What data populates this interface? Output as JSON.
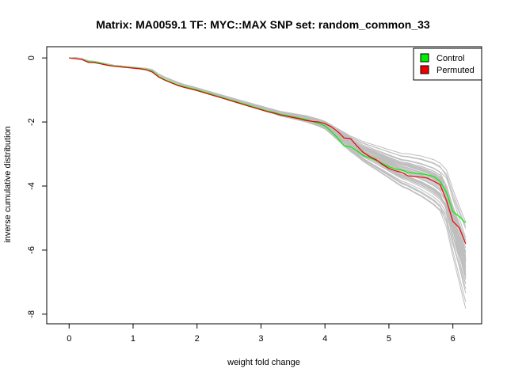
{
  "chart_data": {
    "type": "line",
    "title": "Matrix: MA0059.1 TF: MYC::MAX SNP set: random_common_33",
    "xlabel": "weight fold change",
    "ylabel": "inverse cumulative distribution",
    "xlim": [
      -0.35,
      6.45
    ],
    "ylim": [
      -8.3,
      0.35
    ],
    "x_ticks": [
      0,
      1,
      2,
      3,
      4,
      5,
      6
    ],
    "y_ticks": [
      0,
      -2,
      -4,
      -6,
      -8
    ],
    "x_tick_labels": [
      "0",
      "1",
      "2",
      "3",
      "4",
      "5",
      "6"
    ],
    "y_tick_labels": [
      "0",
      "-2",
      "-4",
      "-6",
      "-8"
    ],
    "legend": {
      "position": "top-right",
      "entries": [
        {
          "label": "Control",
          "color": "#00ee00"
        },
        {
          "label": "Permuted",
          "color": "#ee0000"
        }
      ]
    },
    "background_series": {
      "color": "#bebebe",
      "count": 48,
      "x": [
        0.0,
        0.1,
        0.2,
        0.3,
        0.4,
        0.5,
        0.6,
        0.7,
        0.8,
        0.9,
        1.0,
        1.1,
        1.2,
        1.3,
        1.4,
        1.5,
        1.6,
        1.7,
        1.8,
        1.9,
        2.0,
        2.1,
        2.2,
        2.3,
        2.4,
        2.5,
        2.6,
        2.7,
        2.8,
        2.9,
        3.0,
        3.1,
        3.2,
        3.3,
        3.4,
        3.5,
        3.6,
        3.7,
        3.8,
        3.9,
        4.0,
        4.1,
        4.2,
        4.3,
        4.4,
        4.5,
        4.6,
        4.7,
        4.8,
        4.9,
        5.0,
        5.1,
        5.2,
        5.3,
        5.4,
        5.5,
        5.6,
        5.7,
        5.8,
        5.9,
        6.0,
        6.1,
        6.2
      ],
      "base": [
        0.0,
        0.0,
        -0.03,
        -0.1,
        -0.12,
        -0.16,
        -0.2,
        -0.24,
        -0.26,
        -0.28,
        -0.3,
        -0.32,
        -0.34,
        -0.38,
        -0.52,
        -0.62,
        -0.7,
        -0.78,
        -0.85,
        -0.9,
        -0.96,
        -1.02,
        -1.08,
        -1.14,
        -1.2,
        -1.26,
        -1.32,
        -1.38,
        -1.44,
        -1.5,
        -1.56,
        -1.62,
        -1.68,
        -1.74,
        -1.78,
        -1.82,
        -1.86,
        -1.9,
        -1.96,
        -2.02,
        -2.1,
        -2.25,
        -2.4,
        -2.55,
        -2.7,
        -2.82,
        -2.95,
        -3.05,
        -3.15,
        -3.25,
        -3.35,
        -3.45,
        -3.55,
        -3.6,
        -3.68,
        -3.75,
        -3.85,
        -3.95,
        -4.1,
        -4.3,
        -4.9,
        -5.4,
        -5.9
      ]
    },
    "series": [
      {
        "name": "Control",
        "color": "#00ee00",
        "x": [
          0.0,
          0.2,
          0.3,
          0.4,
          0.5,
          0.6,
          0.7,
          0.8,
          0.9,
          1.0,
          1.1,
          1.2,
          1.3,
          1.4,
          1.5,
          1.6,
          1.7,
          1.8,
          1.9,
          2.0,
          2.1,
          2.2,
          2.3,
          2.4,
          2.5,
          2.6,
          2.7,
          2.8,
          2.9,
          3.0,
          3.1,
          3.2,
          3.3,
          3.4,
          3.5,
          3.6,
          3.7,
          3.8,
          3.9,
          4.0,
          4.1,
          4.2,
          4.3,
          4.4,
          4.5,
          4.6,
          4.7,
          4.8,
          4.9,
          5.0,
          5.1,
          5.2,
          5.3,
          5.4,
          5.5,
          5.6,
          5.7,
          5.8,
          5.9,
          6.0,
          6.1,
          6.2
        ],
        "values": [
          0.0,
          -0.05,
          -0.12,
          -0.13,
          -0.17,
          -0.22,
          -0.25,
          -0.27,
          -0.29,
          -0.31,
          -0.33,
          -0.36,
          -0.42,
          -0.58,
          -0.68,
          -0.76,
          -0.84,
          -0.9,
          -0.95,
          -1.0,
          -1.06,
          -1.12,
          -1.18,
          -1.24,
          -1.3,
          -1.36,
          -1.42,
          -1.48,
          -1.54,
          -1.6,
          -1.66,
          -1.7,
          -1.76,
          -1.8,
          -1.84,
          -1.88,
          -1.92,
          -1.98,
          -2.04,
          -2.12,
          -2.3,
          -2.5,
          -2.75,
          -2.78,
          -2.9,
          -3.05,
          -3.12,
          -3.2,
          -3.3,
          -3.4,
          -3.47,
          -3.5,
          -3.58,
          -3.6,
          -3.62,
          -3.65,
          -3.7,
          -3.85,
          -4.2,
          -4.8,
          -4.95,
          -5.15
        ]
      },
      {
        "name": "Permuted",
        "color": "#ee0000",
        "x": [
          0.0,
          0.2,
          0.3,
          0.4,
          0.5,
          0.6,
          0.7,
          0.8,
          0.9,
          1.0,
          1.1,
          1.2,
          1.3,
          1.4,
          1.5,
          1.6,
          1.7,
          1.8,
          1.9,
          2.0,
          2.1,
          2.2,
          2.3,
          2.4,
          2.5,
          2.6,
          2.7,
          2.8,
          2.9,
          3.0,
          3.1,
          3.2,
          3.3,
          3.4,
          3.5,
          3.6,
          3.7,
          3.8,
          3.9,
          4.0,
          4.1,
          4.2,
          4.3,
          4.4,
          4.5,
          4.6,
          4.7,
          4.8,
          4.9,
          5.0,
          5.1,
          5.2,
          5.3,
          5.4,
          5.5,
          5.6,
          5.7,
          5.8,
          5.9,
          6.0,
          6.1,
          6.2
        ],
        "values": [
          0.0,
          -0.05,
          -0.14,
          -0.15,
          -0.19,
          -0.23,
          -0.26,
          -0.28,
          -0.3,
          -0.32,
          -0.34,
          -0.37,
          -0.44,
          -0.6,
          -0.7,
          -0.78,
          -0.86,
          -0.92,
          -0.97,
          -1.02,
          -1.08,
          -1.14,
          -1.2,
          -1.26,
          -1.32,
          -1.38,
          -1.44,
          -1.5,
          -1.56,
          -1.62,
          -1.68,
          -1.72,
          -1.78,
          -1.82,
          -1.86,
          -1.9,
          -1.95,
          -1.98,
          -2.0,
          -2.05,
          -2.15,
          -2.3,
          -2.5,
          -2.52,
          -2.75,
          -2.95,
          -3.08,
          -3.18,
          -3.33,
          -3.45,
          -3.52,
          -3.58,
          -3.68,
          -3.7,
          -3.72,
          -3.75,
          -3.85,
          -3.95,
          -4.45,
          -5.1,
          -5.3,
          -5.8
        ]
      }
    ]
  }
}
